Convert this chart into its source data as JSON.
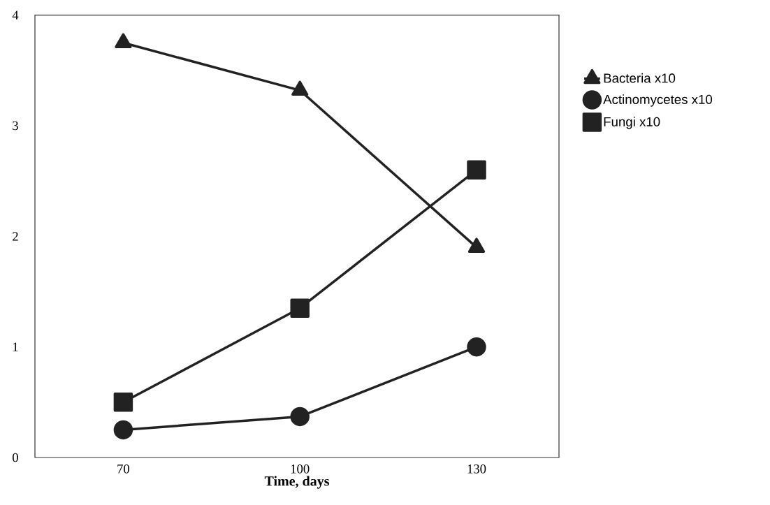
{
  "chart_data": {
    "type": "line",
    "xlabel": "Time, days",
    "x": [
      70,
      100,
      130
    ],
    "series": [
      {
        "name": "Bacteria x10",
        "color": "#222222",
        "marker": "triangle",
        "values": [
          3.75,
          3.32,
          1.9
        ]
      },
      {
        "name": "Actinomycetes x10",
        "color": "#222222",
        "marker": "circle",
        "values": [
          0.25,
          0.37,
          1.0
        ]
      },
      {
        "name": "Fungi x10",
        "color": "#222222",
        "marker": "square",
        "values": [
          0.5,
          1.35,
          2.6
        ]
      }
    ],
    "xlim": [
      55,
      144
    ],
    "ylim": [
      0,
      4
    ],
    "xticks": [
      70,
      100,
      130
    ],
    "yticks": [
      0,
      1,
      2,
      3,
      4
    ],
    "legend": "right",
    "line_style": "solid"
  }
}
